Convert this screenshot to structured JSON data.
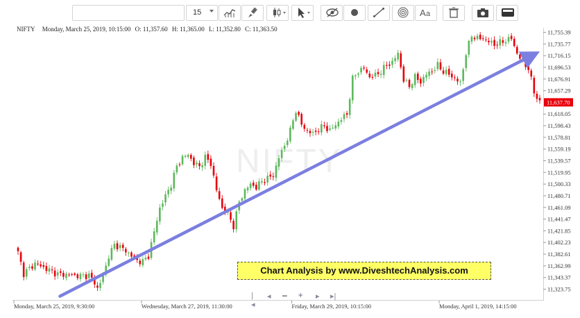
{
  "toolbar": {
    "search_value": "",
    "interval": "15",
    "icons": [
      "indicators-icon",
      "brush-icon",
      "candlestick-type-icon",
      "cursor-icon",
      "hide-icon",
      "dot-icon",
      "trendline-icon",
      "fibonacci-icon",
      "text-icon",
      "trash-icon",
      "camera-icon",
      "toggle-icon"
    ]
  },
  "info": {
    "symbol": "NIFTY",
    "datetime": "Monday, March 25, 2019, 10:15:00",
    "open": "O: 11,357.60",
    "high": "H: 11,365.00",
    "low": "L: 11,352.80",
    "close": "C: 11,363.50"
  },
  "watermark": "NIFTY",
  "annotation": "Chart Analysis by www.DiveshtechAnalysis.com",
  "colors": {
    "up": "#5cb85c",
    "down": "#e8000b",
    "trend": "#7b7fe0",
    "price_tag": "#e8000b"
  },
  "chart_data": {
    "type": "candlestick",
    "symbol": "NIFTY",
    "x_tick_labels": [
      "Monday, March 25, 2019, 9:30:00",
      "Wednesday, March 27, 2019, 11:30:00",
      "Friday, March 29, 2019, 10:15:00",
      "Monday, April 1, 2019, 14:15:00"
    ],
    "y_tick_labels": [
      "11,755.39",
      "11,735.77",
      "11,716.15",
      "11,696.53",
      "11,676.91",
      "11,657.29",
      "11,618.05",
      "11,598.43",
      "11,578.81",
      "11,559.19",
      "11,539.57",
      "11,519.95",
      "11,500.33",
      "11,480.71",
      "11,461.09",
      "11,441.47",
      "11,421.85",
      "11,402.23",
      "11,382.61",
      "11,362.99",
      "11,343.37",
      "11,323.75"
    ],
    "ylim": [
      11313,
      11766
    ],
    "last_price": "11,637.70",
    "close_path": [
      [
        0,
        11385
      ],
      [
        2,
        11350
      ],
      [
        6,
        11367
      ],
      [
        10,
        11358
      ],
      [
        14,
        11349
      ],
      [
        18,
        11348
      ],
      [
        22,
        11346
      ],
      [
        25,
        11347
      ],
      [
        27,
        11335
      ],
      [
        28,
        11325
      ],
      [
        30,
        11345
      ],
      [
        32,
        11380
      ],
      [
        34,
        11398
      ],
      [
        36,
        11395
      ],
      [
        38,
        11388
      ],
      [
        40,
        11380
      ],
      [
        42,
        11372
      ],
      [
        44,
        11370
      ],
      [
        46,
        11380
      ],
      [
        48,
        11420
      ],
      [
        50,
        11460
      ],
      [
        52,
        11480
      ],
      [
        54,
        11500
      ],
      [
        56,
        11530
      ],
      [
        58,
        11545
      ],
      [
        60,
        11550
      ],
      [
        62,
        11535
      ],
      [
        64,
        11530
      ],
      [
        66,
        11545
      ],
      [
        68,
        11535
      ],
      [
        70,
        11490
      ],
      [
        72,
        11460
      ],
      [
        74,
        11450
      ],
      [
        76,
        11430
      ],
      [
        78,
        11470
      ],
      [
        80,
        11490
      ],
      [
        82,
        11500
      ],
      [
        84,
        11495
      ],
      [
        86,
        11505
      ],
      [
        88,
        11510
      ],
      [
        90,
        11515
      ],
      [
        92,
        11545
      ],
      [
        94,
        11565
      ],
      [
        96,
        11590
      ],
      [
        98,
        11625
      ],
      [
        100,
        11600
      ],
      [
        102,
        11590
      ],
      [
        104,
        11585
      ],
      [
        106,
        11593
      ],
      [
        108,
        11598
      ],
      [
        110,
        11590
      ],
      [
        112,
        11600
      ],
      [
        114,
        11610
      ],
      [
        116,
        11618
      ],
      [
        118,
        11677
      ],
      [
        120,
        11690
      ],
      [
        122,
        11695
      ],
      [
        124,
        11680
      ],
      [
        126,
        11683
      ],
      [
        128,
        11690
      ],
      [
        130,
        11700
      ],
      [
        132,
        11705
      ],
      [
        134,
        11720
      ],
      [
        136,
        11675
      ],
      [
        138,
        11665
      ],
      [
        140,
        11680
      ],
      [
        142,
        11672
      ],
      [
        144,
        11685
      ],
      [
        146,
        11690
      ],
      [
        148,
        11700
      ],
      [
        150,
        11690
      ],
      [
        152,
        11685
      ],
      [
        154,
        11678
      ],
      [
        156,
        11670
      ],
      [
        158,
        11720
      ],
      [
        160,
        11750
      ],
      [
        162,
        11745
      ],
      [
        164,
        11745
      ],
      [
        166,
        11740
      ],
      [
        168,
        11735
      ],
      [
        170,
        11738
      ],
      [
        172,
        11742
      ],
      [
        174,
        11745
      ],
      [
        176,
        11720
      ],
      [
        178,
        11705
      ],
      [
        180,
        11695
      ],
      [
        182,
        11655
      ],
      [
        184,
        11637.7
      ]
    ],
    "trendline": {
      "start": [
        "Monday, March 25, 2019, 9:30:00",
        11312
      ],
      "end": [
        "Monday, April 1, 2019",
        11716
      ]
    }
  }
}
